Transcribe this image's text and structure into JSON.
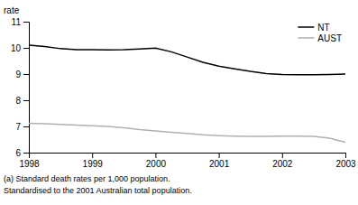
{
  "chart_data": {
    "type": "line",
    "ylabel": "rate",
    "x": [
      1998,
      1998.25,
      1998.5,
      1998.75,
      1999,
      1999.25,
      1999.5,
      1999.75,
      2000,
      2000.25,
      2000.5,
      2000.75,
      2001,
      2001.25,
      2001.5,
      2001.75,
      2002,
      2002.25,
      2002.5,
      2002.75,
      2003
    ],
    "series": [
      {
        "name": "NT",
        "color": "#000000",
        "values": [
          10.1,
          10.05,
          9.97,
          9.93,
          9.93,
          9.92,
          9.93,
          9.96,
          9.99,
          9.85,
          9.65,
          9.45,
          9.3,
          9.2,
          9.1,
          9.02,
          8.98,
          8.97,
          8.97,
          8.98,
          9.0
        ]
      },
      {
        "name": "AUST",
        "color": "#b0b0b0",
        "values": [
          7.12,
          7.1,
          7.08,
          7.05,
          7.03,
          7.0,
          6.95,
          6.88,
          6.83,
          6.78,
          6.73,
          6.68,
          6.65,
          6.63,
          6.62,
          6.62,
          6.63,
          6.63,
          6.62,
          6.55,
          6.4
        ]
      }
    ],
    "xlim": [
      1998,
      2003
    ],
    "ylim": [
      6,
      11
    ],
    "xticks": [
      1998,
      1999,
      2000,
      2001,
      2002,
      2003
    ],
    "yticks": [
      6,
      7,
      8,
      9,
      10,
      11
    ],
    "annotations": [
      "(a) Standard death rates per 1,000 population.",
      "Standardised to the 2001 Australian total population."
    ],
    "legend": "upper right",
    "grid": false
  }
}
